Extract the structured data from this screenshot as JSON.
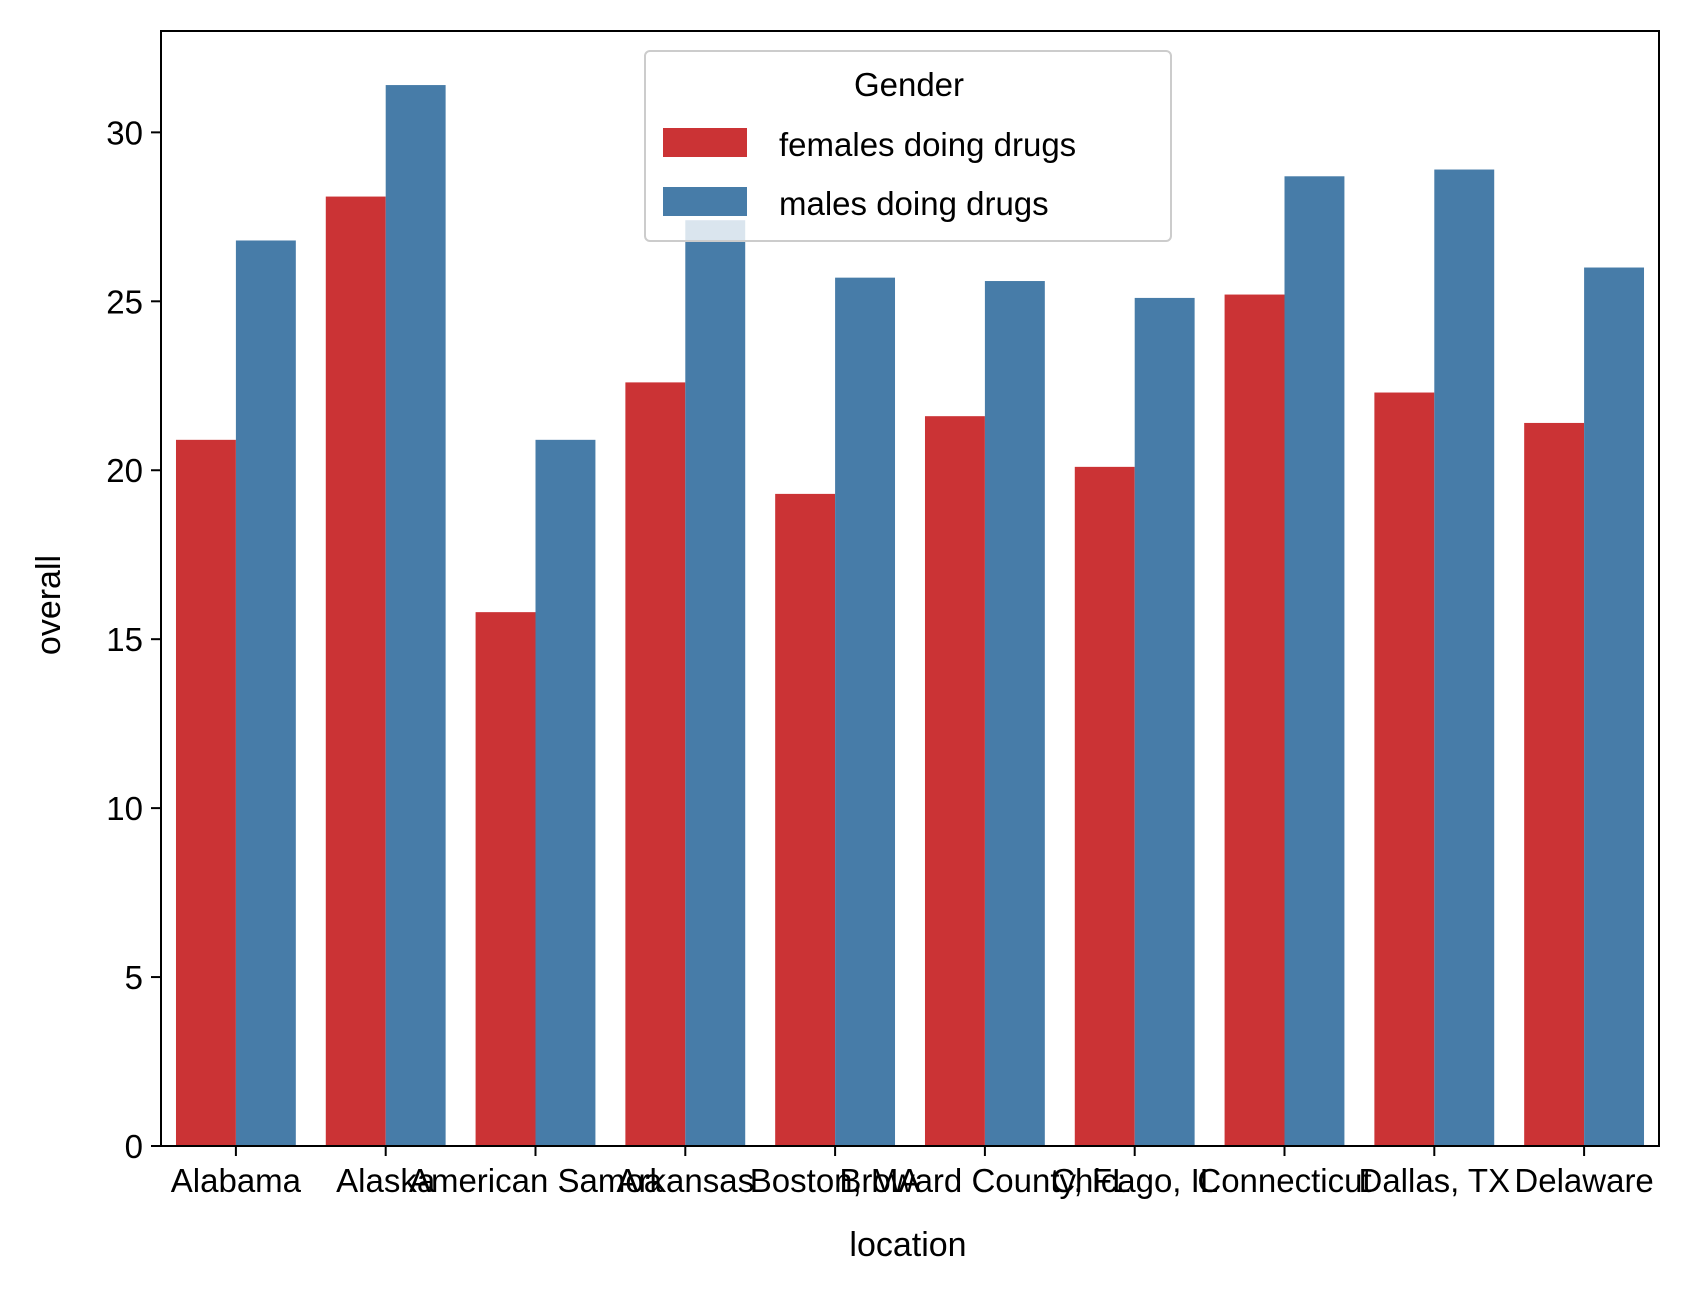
{
  "chart_data": {
    "type": "bar",
    "xlabel": "location",
    "ylabel": "overall",
    "categories": [
      "Alabama",
      "Alaska",
      "American Samoa",
      "Arkansas",
      "Boston, MA",
      "Broward County, FL",
      "Chicago, IL",
      "Connecticut",
      "Dallas, TX",
      "Delaware"
    ],
    "series": [
      {
        "name": "females doing drugs",
        "color": "#cb3335",
        "values": [
          20.9,
          28.1,
          15.8,
          22.6,
          19.3,
          21.6,
          20.1,
          25.2,
          22.3,
          21.4
        ]
      },
      {
        "name": "males doing drugs",
        "color": "#477ca8",
        "values": [
          26.8,
          31.4,
          20.9,
          27.4,
          25.7,
          25.6,
          25.1,
          28.7,
          28.9,
          26.0
        ]
      }
    ],
    "ylim": [
      0,
      33
    ],
    "yticks": [
      0,
      5,
      10,
      15,
      20,
      25,
      30
    ],
    "grid": false,
    "legend": {
      "title": "Gender",
      "placement": "upper-center"
    }
  }
}
